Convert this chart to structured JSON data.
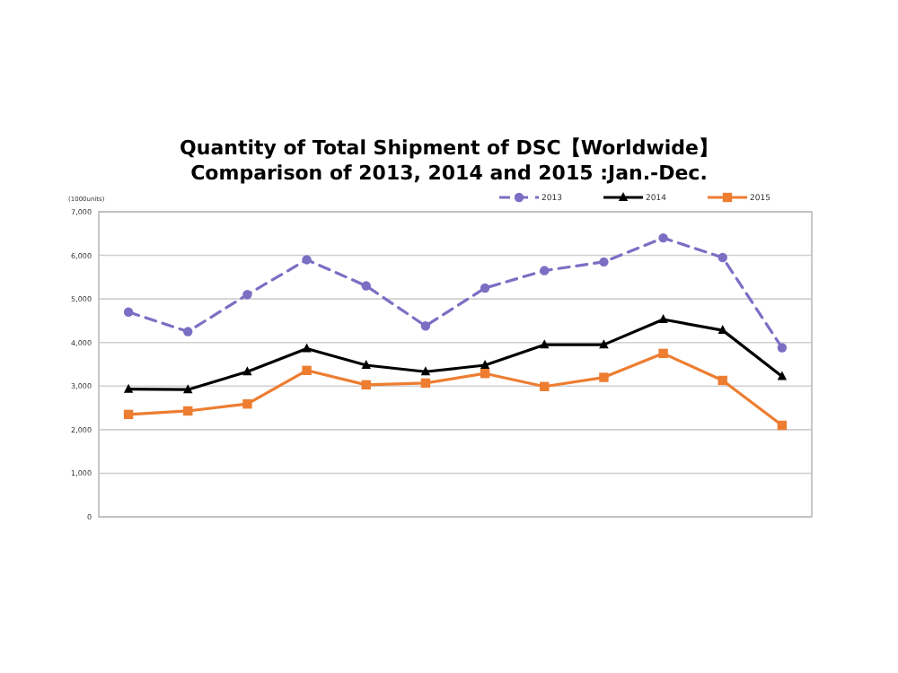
{
  "chart_data": {
    "type": "line",
    "title": "Quantity of Total Shipment of DSC【Worldwide】\nComparison of 2013, 2014 and 2015 :Jan.-Dec.",
    "ylabel": "(1000units)",
    "categories": [
      null,
      null,
      null,
      null,
      null,
      null,
      null,
      null,
      null,
      null,
      null,
      null
    ],
    "series": [
      {
        "name": "2013",
        "color": "#7b6fc4",
        "line_style": "dashed",
        "marker": "circle",
        "values": [
          4700,
          4250,
          5100,
          5900,
          5300,
          4380,
          5250,
          5650,
          5850,
          6400,
          5950,
          3880
        ]
      },
      {
        "name": "2014",
        "color": "#000000",
        "line_style": "solid",
        "marker": "triangle",
        "values": [
          2930,
          2920,
          3330,
          3860,
          3480,
          3330,
          3480,
          3950,
          3950,
          4530,
          4280,
          3220
        ]
      },
      {
        "name": "2015",
        "color": "#ed7d31",
        "line_style": "solid",
        "marker": "square",
        "values": [
          2350,
          2430,
          2590,
          3360,
          3030,
          3070,
          3290,
          2990,
          3200,
          3750,
          3130,
          2100
        ]
      }
    ],
    "ylim": [
      0,
      7000
    ],
    "yticks": [
      {
        "value": 0,
        "label": "0"
      },
      {
        "value": 1000,
        "label": "1,000"
      },
      {
        "value": 2000,
        "label": "2,000"
      },
      {
        "value": 3000,
        "label": "3,000"
      },
      {
        "value": 4000,
        "label": "4,000"
      },
      {
        "value": 5000,
        "label": "5,000"
      },
      {
        "value": 6000,
        "label": "6,000"
      },
      {
        "value": 7000,
        "label": "7,000"
      }
    ],
    "grid": "y",
    "legend": "top right"
  }
}
